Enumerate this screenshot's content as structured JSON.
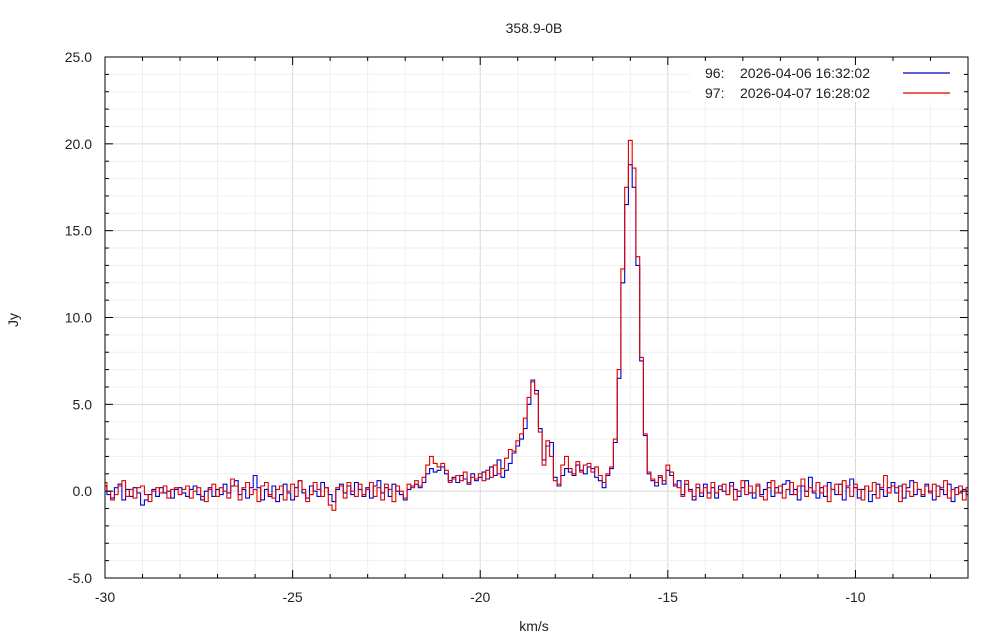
{
  "chart_data": {
    "type": "line",
    "title": "358.9-0B",
    "xlabel": "km/s",
    "ylabel": "Jy",
    "xlim": [
      -30,
      -7
    ],
    "ylim": [
      -5,
      25
    ],
    "x_major_ticks": [
      -30,
      -25,
      -20,
      -15,
      -10
    ],
    "x_tick_labels": [
      "-30",
      "-25",
      "-20",
      "-15",
      "-10"
    ],
    "y_major_ticks": [
      -5,
      0,
      5,
      10,
      15,
      20,
      25
    ],
    "y_tick_labels": [
      "-5.0",
      "0.0",
      "5.0",
      "10.0",
      "15.0",
      "20.0",
      "25.0"
    ],
    "grid": true,
    "legend_position": "top-right",
    "x_start": -30,
    "x_step": 0.1,
    "series": [
      {
        "name": "96:   2026-04-06 16:32:02",
        "color": "#0000cc",
        "values": [
          0.3,
          -0.2,
          -0.4,
          0.2,
          0.4,
          -0.5,
          0.1,
          -0.3,
          0.2,
          -0.1,
          -0.8,
          -0.5,
          -0.2,
          0.1,
          -0.3,
          0.2,
          -0.1,
          0.0,
          -0.4,
          0.1,
          0.2,
          -0.1,
          -0.3,
          0.1,
          0.3,
          -0.2,
          -0.5,
          0.0,
          0.2,
          -0.3,
          0.1,
          -0.2,
          0.4,
          -0.1,
          0.3,
          0.6,
          -0.2,
          0.1,
          -0.4,
          0.2,
          0.9,
          0.2,
          -0.5,
          0.1,
          -0.3,
          0.3,
          -0.6,
          -0.2,
          0.4,
          -0.1,
          -0.5,
          0.2,
          0.6,
          -0.1,
          -0.4,
          0.3,
          0.0,
          -0.3,
          0.5,
          0.2,
          -0.2,
          -0.6,
          0.1,
          0.4,
          -0.1,
          0.3,
          -0.2,
          0.5,
          0.1,
          -0.3,
          0.2,
          -0.4,
          0.3,
          0.6,
          -0.1,
          0.2,
          -0.3,
          0.4,
          0.0,
          -0.2,
          -0.5,
          0.1,
          0.3,
          0.4,
          0.2,
          0.5,
          1.0,
          1.3,
          1.1,
          1.2,
          1.4,
          1.0,
          0.6,
          0.8,
          0.5,
          0.9,
          0.7,
          0.4,
          1.0,
          0.6,
          0.8,
          1.1,
          0.7,
          1.4,
          0.9,
          1.8,
          0.8,
          1.2,
          1.6,
          2.2,
          2.6,
          3.0,
          3.6,
          5.0,
          6.4,
          5.8,
          3.6,
          1.8,
          2.6,
          2.8,
          0.8,
          0.3,
          0.9,
          1.3,
          1.1,
          0.9,
          1.5,
          1.2,
          1.0,
          1.4,
          1.3,
          0.8,
          0.6,
          0.2,
          0.9,
          1.3,
          2.8,
          6.5,
          12.0,
          16.5,
          18.8,
          17.5,
          13.0,
          7.5,
          3.2,
          1.0,
          0.6,
          0.3,
          0.8,
          0.4,
          1.2,
          0.9,
          0.3,
          0.6,
          -0.2,
          0.4,
          0.1,
          -0.5,
          0.2,
          -0.3,
          0.4,
          -0.1,
          0.2,
          -0.4,
          0.3,
          0.0,
          -0.2,
          0.5,
          0.1,
          -0.3,
          0.2,
          0.6,
          -0.1,
          -0.4,
          0.3,
          -0.2,
          0.1,
          0.5,
          -0.3,
          0.2,
          -0.1,
          0.4,
          0.6,
          -0.2,
          0.1,
          -0.5,
          0.3,
          0.0,
          0.8,
          -0.1,
          -0.4,
          0.2,
          -0.3,
          0.5,
          0.1,
          -0.2,
          0.4,
          -0.5,
          0.3,
          0.7,
          0.2,
          -0.4,
          0.1,
          0.3,
          -0.6,
          -0.2,
          0.4,
          0.1,
          -0.3,
          0.2,
          0.5,
          -0.1,
          0.3,
          -0.4,
          0.2,
          0.6,
          -0.2,
          0.1,
          -0.3,
          0.4,
          0.0,
          -0.5,
          0.3,
          0.1,
          -0.2,
          0.4,
          -0.6,
          0.2,
          -0.1,
          0.1,
          -0.2
        ]
      },
      {
        "name": "97:   2026-04-07 16:28:02",
        "color": "#dd0000",
        "values": [
          0.5,
          0.0,
          -0.5,
          -0.2,
          0.3,
          0.6,
          -0.3,
          0.1,
          -0.4,
          0.2,
          0.3,
          -0.2,
          -0.6,
          0.0,
          0.2,
          -0.1,
          0.3,
          -0.4,
          0.1,
          0.2,
          -0.2,
          0.1,
          0.3,
          -0.4,
          0.0,
          0.2,
          -0.3,
          -0.6,
          0.1,
          0.4,
          -0.3,
          0.2,
          0.0,
          -0.4,
          0.7,
          0.3,
          -0.5,
          0.2,
          0.5,
          -0.2,
          0.1,
          -0.6,
          0.3,
          0.5,
          -0.2,
          -0.4,
          0.1,
          0.3,
          -0.5,
          0.0,
          0.4,
          -0.3,
          0.6,
          0.1,
          -0.6,
          -0.2,
          0.5,
          0.1,
          -0.3,
          0.2,
          -0.8,
          -1.1,
          0.2,
          0.3,
          -0.4,
          0.5,
          0.0,
          -0.3,
          0.4,
          -0.2,
          0.1,
          0.5,
          -0.3,
          0.2,
          -0.5,
          0.4,
          0.1,
          -0.6,
          0.3,
          0.0,
          -0.4,
          0.4,
          0.2,
          0.6,
          0.3,
          0.8,
          1.5,
          2.0,
          1.6,
          1.4,
          1.6,
          1.2,
          0.5,
          0.7,
          0.9,
          0.6,
          1.1,
          0.5,
          0.8,
          0.7,
          1.0,
          0.6,
          1.2,
          0.8,
          1.5,
          1.0,
          1.3,
          1.9,
          2.4,
          2.3,
          2.9,
          3.3,
          4.2,
          5.4,
          6.3,
          5.6,
          3.4,
          1.5,
          2.9,
          2.0,
          0.6,
          0.4,
          1.5,
          2.0,
          1.3,
          1.0,
          1.7,
          1.1,
          1.5,
          1.6,
          1.1,
          1.4,
          0.9,
          0.5,
          1.0,
          1.4,
          3.0,
          7.0,
          12.8,
          17.5,
          20.2,
          18.6,
          13.5,
          7.7,
          3.3,
          1.1,
          0.7,
          0.5,
          0.9,
          0.6,
          1.5,
          1.1,
          0.4,
          0.2,
          -0.3,
          0.6,
          0.0,
          -0.3,
          0.4,
          -0.1,
          0.2,
          -0.4,
          0.5,
          -0.1,
          0.1,
          0.4,
          -0.2,
          0.3,
          -0.5,
          0.0,
          0.6,
          -0.2,
          0.3,
          -0.1,
          0.4,
          -0.3,
          -0.5,
          0.2,
          0.6,
          -0.1,
          0.3,
          -0.4,
          0.1,
          0.5,
          -0.2,
          0.3,
          0.7,
          -0.3,
          0.2,
          0.0,
          0.5,
          -0.1,
          0.3,
          -0.6,
          0.1,
          0.4,
          -0.2,
          0.6,
          0.2,
          -0.3,
          0.4,
          0.1,
          -0.5,
          0.3,
          0.0,
          0.5,
          -0.4,
          0.2,
          0.9,
          -0.1,
          0.3,
          0.2,
          -0.6,
          0.4,
          0.0,
          -0.3,
          0.5,
          0.1,
          -0.2,
          0.3,
          -0.1,
          0.4,
          -0.3,
          0.2,
          0.6,
          -0.4,
          0.1,
          -0.2,
          0.3,
          -0.5,
          0.2
        ]
      }
    ]
  }
}
